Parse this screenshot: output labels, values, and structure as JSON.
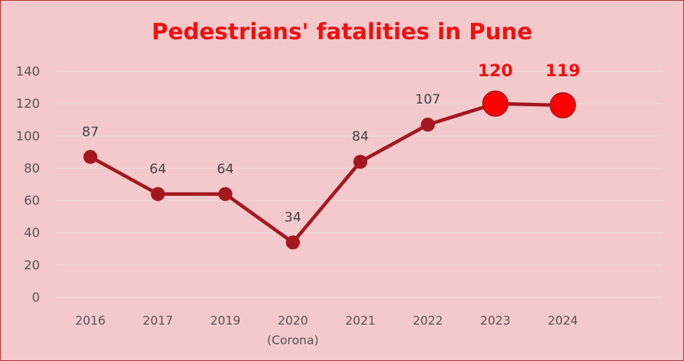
{
  "chart_data": {
    "type": "line",
    "title": "Pedestrians' fatalities in Pune",
    "categories": [
      "2016",
      "2017",
      "2019",
      "2020",
      "2021",
      "2022",
      "2023",
      "2024"
    ],
    "category_notes": [
      "",
      "",
      "",
      "(Corona)",
      "",
      "",
      "",
      ""
    ],
    "values": [
      87,
      64,
      64,
      34,
      84,
      107,
      120,
      119
    ],
    "highlighted": [
      false,
      false,
      false,
      false,
      false,
      false,
      true,
      true
    ],
    "ylim": [
      0,
      140
    ],
    "yticks": [
      0,
      20,
      40,
      60,
      80,
      100,
      120,
      140
    ],
    "grid": true,
    "legend": "none",
    "colors": {
      "background": "#f4c9cb",
      "line": "#a3181f",
      "marker": "#a3181f",
      "highlight": "#ff0000",
      "title": "#ee1111",
      "grid": "#ead9da"
    }
  }
}
